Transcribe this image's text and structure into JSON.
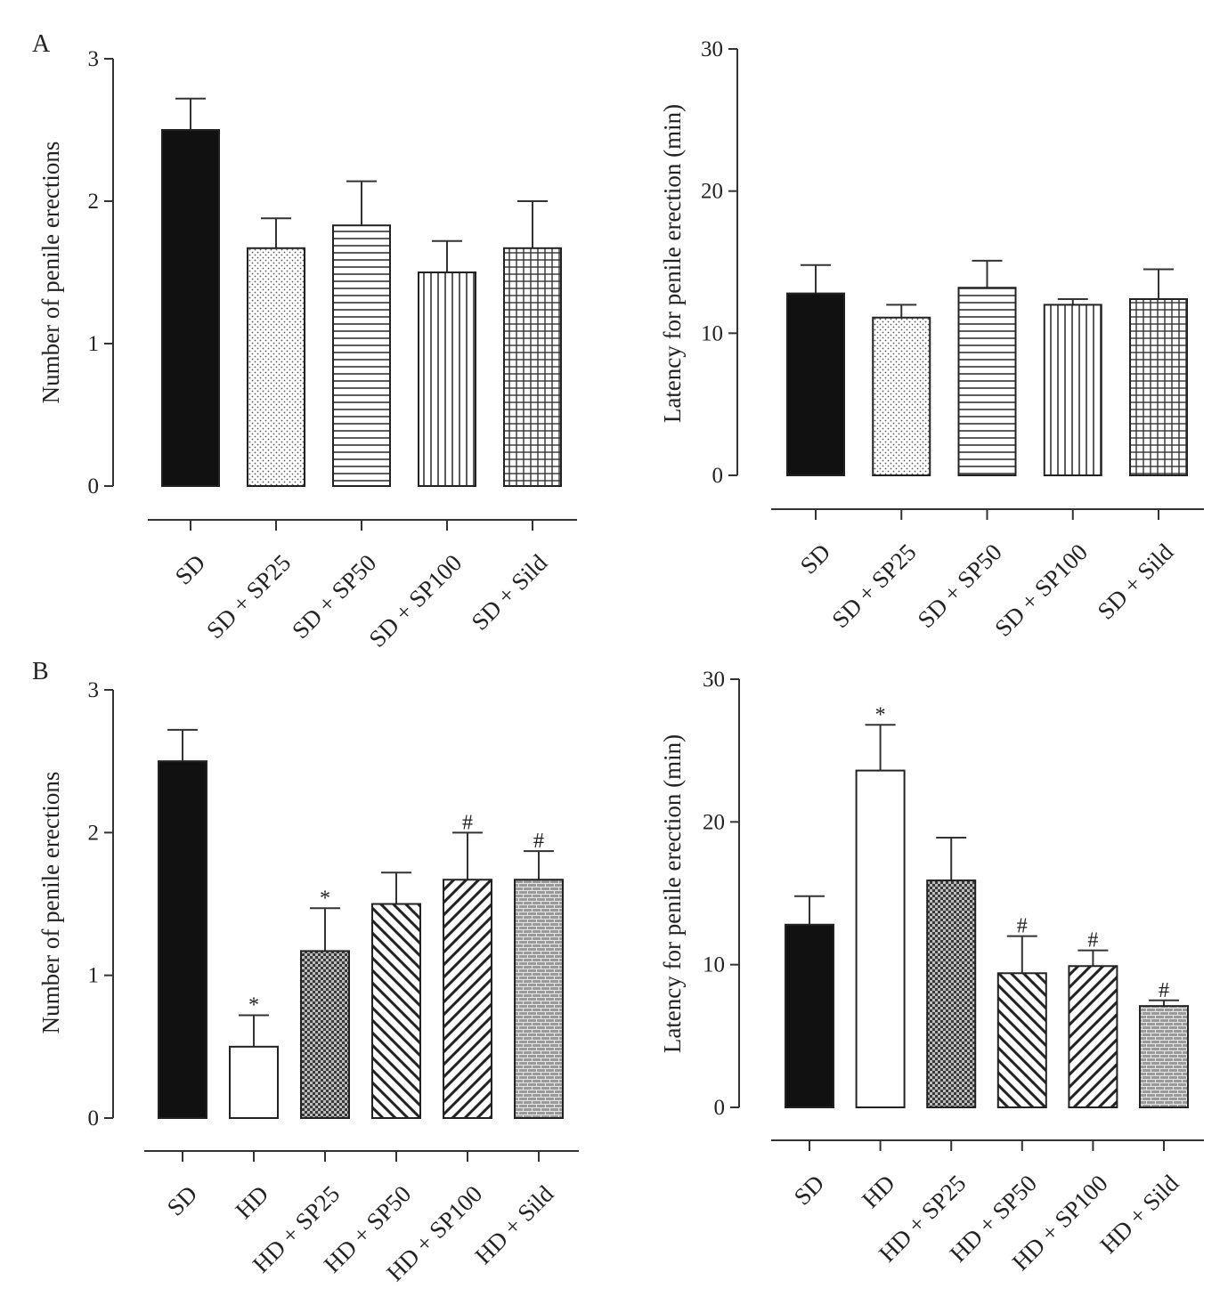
{
  "panels": [
    {
      "label": "A"
    },
    {
      "label": "B"
    }
  ],
  "chart_data": [
    {
      "type": "bar",
      "panel": "A",
      "title": "",
      "xlabel": "",
      "ylabel": "Number of penile erections",
      "ylim": [
        0,
        3
      ],
      "yticks": [
        0,
        1,
        2,
        3
      ],
      "categories": [
        "SD",
        "SD + SP25",
        "SD + SP50",
        "SD + SP100",
        "SD + Sild"
      ],
      "values": [
        2.5,
        1.67,
        1.83,
        1.5,
        1.67
      ],
      "errors": [
        0.22,
        0.21,
        0.31,
        0.22,
        0.33
      ],
      "fill_patterns": [
        "solid",
        "dots",
        "horizontal",
        "vertical",
        "grid"
      ],
      "annotations": [
        "",
        "",
        "",
        "",
        ""
      ]
    },
    {
      "type": "bar",
      "panel": "A",
      "title": "",
      "xlabel": "",
      "ylabel": "Latency for penile erection (min)",
      "ylim": [
        0,
        30
      ],
      "yticks": [
        0,
        10,
        20,
        30
      ],
      "categories": [
        "SD",
        "SD + SP25",
        "SD + SP50",
        "SD + SP100",
        "SD + Sild"
      ],
      "values": [
        12.8,
        11.1,
        13.2,
        12.0,
        12.4
      ],
      "errors": [
        2.0,
        0.9,
        1.9,
        0.4,
        2.1
      ],
      "fill_patterns": [
        "solid",
        "dots",
        "horizontal",
        "vertical",
        "grid"
      ],
      "annotations": [
        "",
        "",
        "",
        "",
        ""
      ]
    },
    {
      "type": "bar",
      "panel": "B",
      "title": "",
      "xlabel": "",
      "ylabel": "Number of penile erections",
      "ylim": [
        0,
        3
      ],
      "yticks": [
        0,
        1,
        2,
        3
      ],
      "categories": [
        "SD",
        "HD",
        "HD + SP25",
        "HD + SP50",
        "HD + SP100",
        "HD + Sild"
      ],
      "values": [
        2.5,
        0.5,
        1.17,
        1.5,
        1.67,
        1.67
      ],
      "errors": [
        0.22,
        0.22,
        0.3,
        0.22,
        0.33,
        0.2
      ],
      "fill_patterns": [
        "solid",
        "empty",
        "checker",
        "diag-right",
        "diag-left",
        "brick"
      ],
      "annotations": [
        "",
        "*",
        "*",
        "",
        "#",
        "#"
      ]
    },
    {
      "type": "bar",
      "panel": "B",
      "title": "",
      "xlabel": "",
      "ylabel": "Latency for penile erection (min)",
      "ylim": [
        0,
        30
      ],
      "yticks": [
        0,
        10,
        20,
        30
      ],
      "categories": [
        "SD",
        "HD",
        "HD + SP25",
        "HD + SP50",
        "HD + SP100",
        "HD + Sild"
      ],
      "values": [
        12.8,
        23.6,
        15.9,
        9.4,
        9.9,
        7.1
      ],
      "errors": [
        2.0,
        3.2,
        3.0,
        2.6,
        1.1,
        0.4
      ],
      "fill_patterns": [
        "solid",
        "empty",
        "checker",
        "diag-right",
        "diag-left",
        "brick"
      ],
      "annotations": [
        "",
        "*",
        "",
        "#",
        "#",
        "#"
      ]
    }
  ]
}
